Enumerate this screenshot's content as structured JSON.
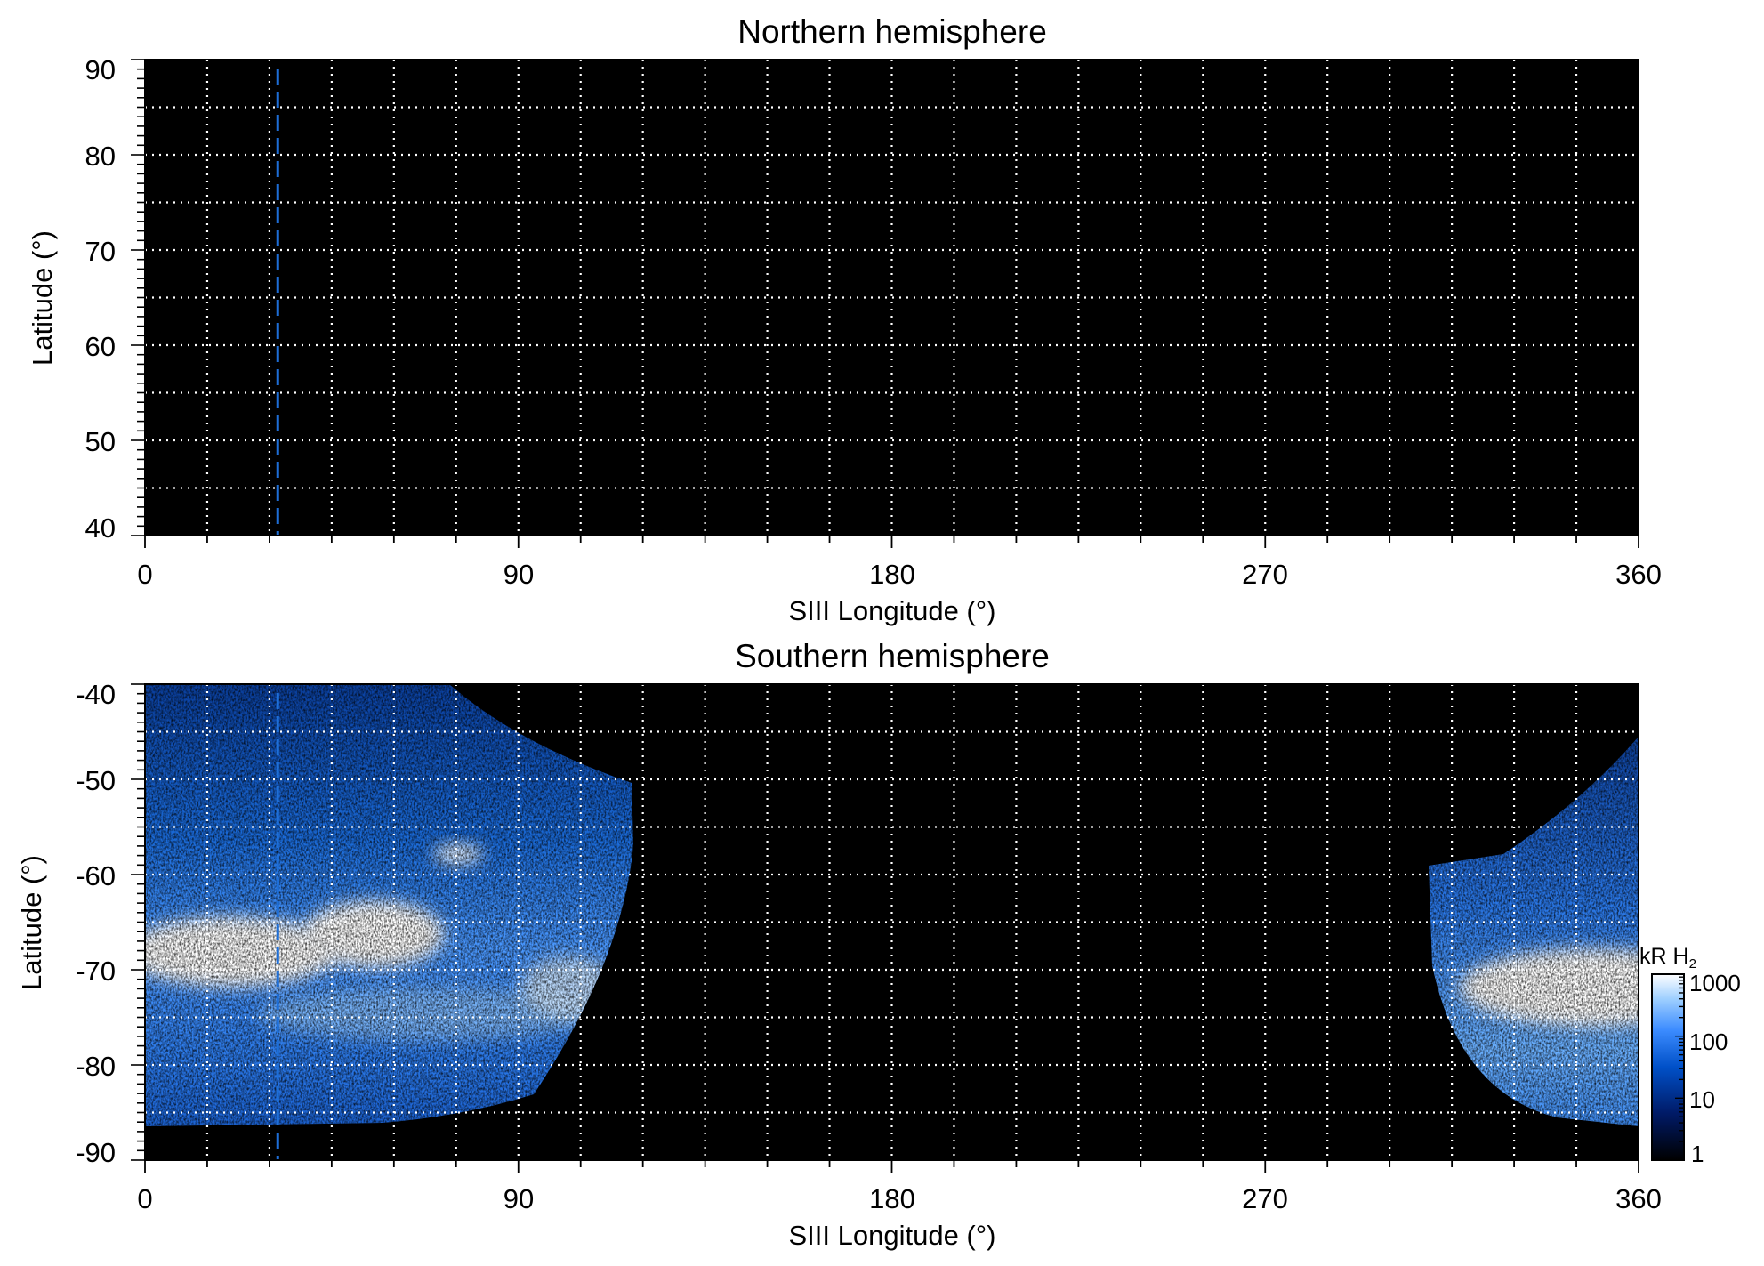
{
  "chart_data": [
    {
      "type": "heatmap",
      "title": "Northern hemisphere",
      "xlabel": "SIII Longitude (°)",
      "ylabel": "Latitude (°)",
      "xlim": [
        0,
        360
      ],
      "ylim": [
        40,
        90
      ],
      "xticks": [
        "0",
        "90",
        "180",
        "270",
        "360"
      ],
      "yticks": [
        "40",
        "50",
        "60",
        "70",
        "80",
        "90"
      ],
      "grid": true,
      "grid_x_step": 15,
      "grid_y_step": 5,
      "marker_longitude": 32,
      "emission": "none"
    },
    {
      "type": "heatmap",
      "title": "Southern hemisphere",
      "xlabel": "SIII Longitude (°)",
      "ylabel": "Latitude (°)",
      "xlim": [
        0,
        360
      ],
      "ylim": [
        -90,
        -40
      ],
      "xticks": [
        "0",
        "90",
        "180",
        "270",
        "360"
      ],
      "yticks": [
        "-40",
        "-50",
        "-60",
        "-70",
        "-80",
        "-90"
      ],
      "grid": true,
      "grid_x_step": 15,
      "grid_y_step": 5,
      "marker_longitude": 32,
      "emission_regions": [
        {
          "lon_range": [
            0,
            117
          ],
          "lat_range": [
            -87,
            -40
          ]
        },
        {
          "lon_range": [
            309,
            360
          ],
          "lat_range": [
            -87,
            -46
          ]
        }
      ],
      "main_oval_latitude": -70
    }
  ],
  "colorbar": {
    "title": "kR H",
    "title_subscript": "2",
    "scale": "log",
    "range": [
      1,
      1000
    ],
    "ticks": [
      "1000",
      "100",
      "10",
      "1"
    ],
    "colors": [
      "#000000",
      "#001a66",
      "#0050c8",
      "#3c8cff",
      "#a0d0ff",
      "#ffffff"
    ]
  },
  "colors": {
    "background": "#000000",
    "grid": "#ffffff",
    "marker": "#1e6fd8"
  }
}
